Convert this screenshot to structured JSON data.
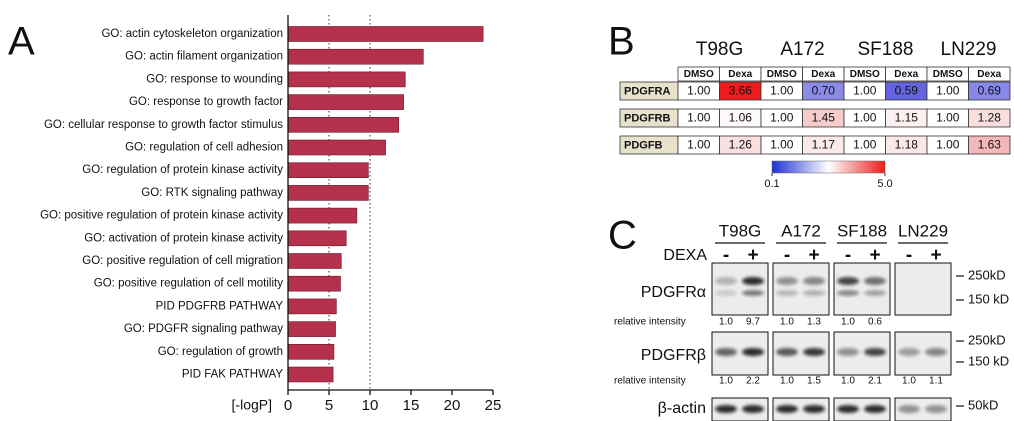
{
  "chart_data": {
    "type": "bar",
    "panel_label": "A",
    "categories": [
      "GO: actin cytoskeleton organization",
      "GO: actin filament organization",
      "GO: response to wounding",
      "GO: response to growth factor",
      "GO: cellular response to growth factor stimulus",
      "GO: regulation of cell adhesion",
      "GO: regulation of protein kinase activity",
      "GO: RTK signaling pathway",
      "GO: positive regulation of protein kinase activity",
      "GO: activation of protein kinase activity",
      "GO: positive regulation of cell migration",
      "GO: positive regulation of cell motility",
      "PID PDGFRB PATHWAY",
      "GO: PDGFR signaling pathway",
      "GO: regulation of growth",
      "PID FAK PATHWAY"
    ],
    "values": [
      23.8,
      16.5,
      14.3,
      14.1,
      13.5,
      11.9,
      9.8,
      9.8,
      8.4,
      7.1,
      6.5,
      6.4,
      5.9,
      5.8,
      5.6,
      5.5
    ],
    "color": "#b5304a",
    "xlabel": "[-logP]",
    "xlim": [
      0,
      25
    ],
    "xticks": [
      0,
      5,
      10,
      15,
      20,
      25
    ],
    "reference_lines": [
      5,
      10
    ]
  },
  "heatmap_table": {
    "panel_label": "B",
    "groups": [
      "T98G",
      "A172",
      "SF188",
      "LN229"
    ],
    "columns": [
      "DMSO",
      "Dexa",
      "DMSO",
      "Dexa",
      "DMSO",
      "Dexa",
      "DMSO",
      "Dexa"
    ],
    "rows": [
      {
        "name": "PDGFRA",
        "cells": [
          "1.00",
          "3.66",
          "1.00",
          "0.70",
          "1.00",
          "0.59",
          "1.00",
          "0.69"
        ],
        "colors": [
          "#ffffff",
          "#ee1c1c",
          "#ffffff",
          "#8c8ce8",
          "#ffffff",
          "#6464e0",
          "#ffffff",
          "#8888e8"
        ]
      },
      {
        "name": "PDGFRB",
        "cells": [
          "1.00",
          "1.06",
          "1.00",
          "1.45",
          "1.00",
          "1.15",
          "1.00",
          "1.28"
        ],
        "colors": [
          "#ffffff",
          "#fffafa",
          "#ffffff",
          "#f6cccc",
          "#ffffff",
          "#fdf0f0",
          "#ffffff",
          "#f9dede"
        ]
      },
      {
        "name": "PDGFB",
        "cells": [
          "1.00",
          "1.26",
          "1.00",
          "1.17",
          "1.00",
          "1.18",
          "1.00",
          "1.63"
        ],
        "colors": [
          "#ffffff",
          "#f9e0e0",
          "#ffffff",
          "#fbeaea",
          "#ffffff",
          "#fbe8e8",
          "#ffffff",
          "#f3b8b8"
        ]
      }
    ],
    "colorbar": {
      "colors": [
        "#1d2fd8",
        "#ffffff",
        "#ee1c1c"
      ],
      "ticks": [
        {
          "value": 0.1,
          "label": "0.1"
        },
        {
          "value": 5,
          "label": "5.0"
        }
      ]
    }
  },
  "blot": {
    "panel_label": "C",
    "treatment_label": "DEXA",
    "groups": [
      "T98G",
      "A172",
      "SF188",
      "LN229"
    ],
    "lane_labels": [
      "-",
      "+"
    ],
    "rows": [
      {
        "name": "PDGFRα",
        "markers": [
          "250kD",
          "150 kD"
        ],
        "intensity_label": "relative intensity",
        "intensities": [
          "1.0",
          "9.7",
          "1.0",
          "1.3",
          "1.0",
          "0.6"
        ]
      },
      {
        "name": "PDGFRβ",
        "markers": [
          "250kD",
          "150 kD"
        ],
        "intensity_label": "relative intensity",
        "intensities": [
          "1.0",
          "2.2",
          "1.0",
          "1.5",
          "1.0",
          "2.1",
          "1.0",
          "1.1"
        ]
      },
      {
        "name": "β-actin",
        "markers": [
          "50kD"
        ]
      }
    ]
  }
}
